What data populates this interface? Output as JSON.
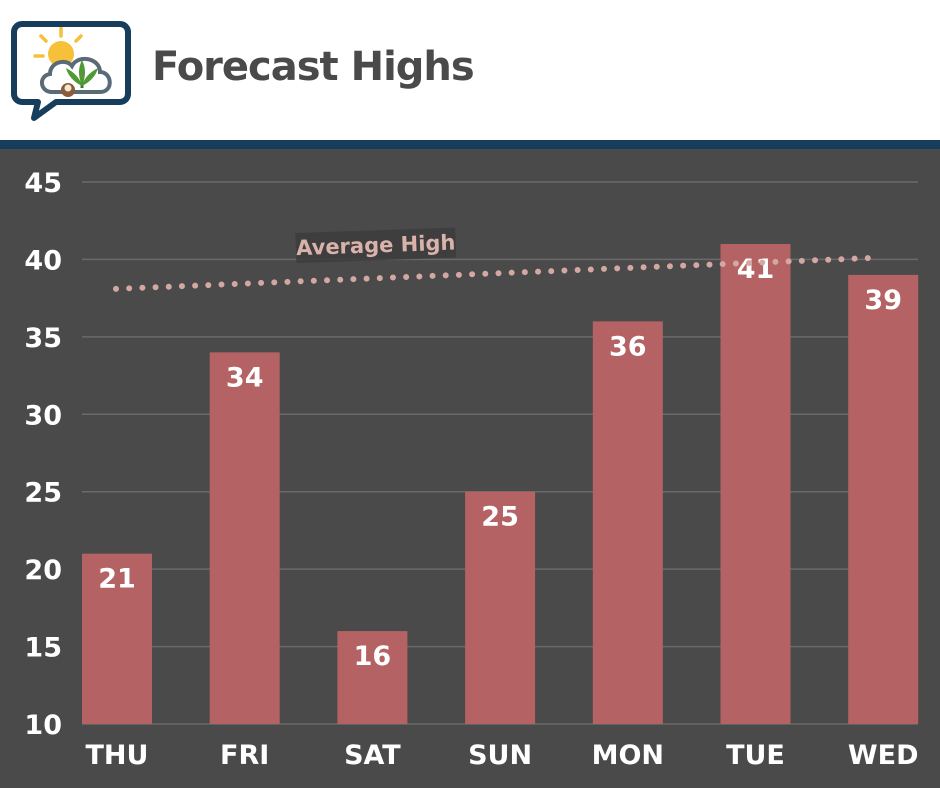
{
  "header": {
    "title": "Forecast Highs",
    "logo_icon": "weather-cannabis-logo-icon"
  },
  "colors": {
    "background": "#4a4a4a",
    "bar": "#b46264",
    "grid": "#6a6a6a",
    "reference_line": "#d4a8a2",
    "header_rule": "#173d5c",
    "title": "#4a4a4a"
  },
  "chart_data": {
    "type": "bar",
    "title": "Forecast Highs",
    "xlabel": "",
    "ylabel": "",
    "categories": [
      "THU",
      "FRI",
      "SAT",
      "SUN",
      "MON",
      "TUE",
      "WED"
    ],
    "values": [
      21,
      34,
      16,
      25,
      36,
      41,
      39
    ],
    "data_labels": [
      "21",
      "34",
      "16",
      "25",
      "36",
      "41",
      "39"
    ],
    "ylim": [
      10,
      45
    ],
    "yticks": [
      10,
      15,
      20,
      25,
      30,
      35,
      40,
      45
    ],
    "ytick_labels": [
      "10",
      "15",
      "20",
      "25",
      "30",
      "35",
      "40",
      "45"
    ],
    "grid": true,
    "legend": "none",
    "reference_line": {
      "label": "Average High",
      "start": 38.1,
      "end": 40.1,
      "style": "dotted"
    }
  }
}
